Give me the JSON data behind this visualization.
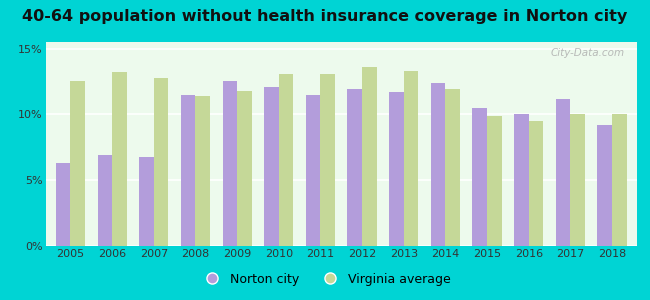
{
  "title": "40-64 population without health insurance coverage in Norton city",
  "years": [
    2005,
    2006,
    2007,
    2008,
    2009,
    2010,
    2011,
    2012,
    2013,
    2014,
    2015,
    2016,
    2017,
    2018
  ],
  "norton_city": [
    6.3,
    6.9,
    6.8,
    11.5,
    12.5,
    12.1,
    11.5,
    11.9,
    11.7,
    12.4,
    10.5,
    10.0,
    11.2,
    9.2
  ],
  "virginia_avg": [
    12.5,
    13.2,
    12.8,
    11.4,
    11.8,
    13.1,
    13.1,
    13.6,
    13.3,
    11.9,
    9.9,
    9.5,
    10.0,
    10.0
  ],
  "norton_color": "#b39ddb",
  "virginia_color": "#c5d898",
  "fig_bg": "#00d4d4",
  "plot_bg": "#edfaed",
  "yticks": [
    0,
    5,
    10,
    15
  ],
  "ytick_labels": [
    "0%",
    "5%",
    "10%",
    "15%"
  ],
  "ylim": [
    0,
    15.5
  ],
  "bar_width": 0.35,
  "legend_norton": "Norton city",
  "legend_virginia": "Virginia average",
  "title_fontsize": 11.5,
  "tick_fontsize": 8,
  "legend_fontsize": 9,
  "watermark": "City-Data.com"
}
